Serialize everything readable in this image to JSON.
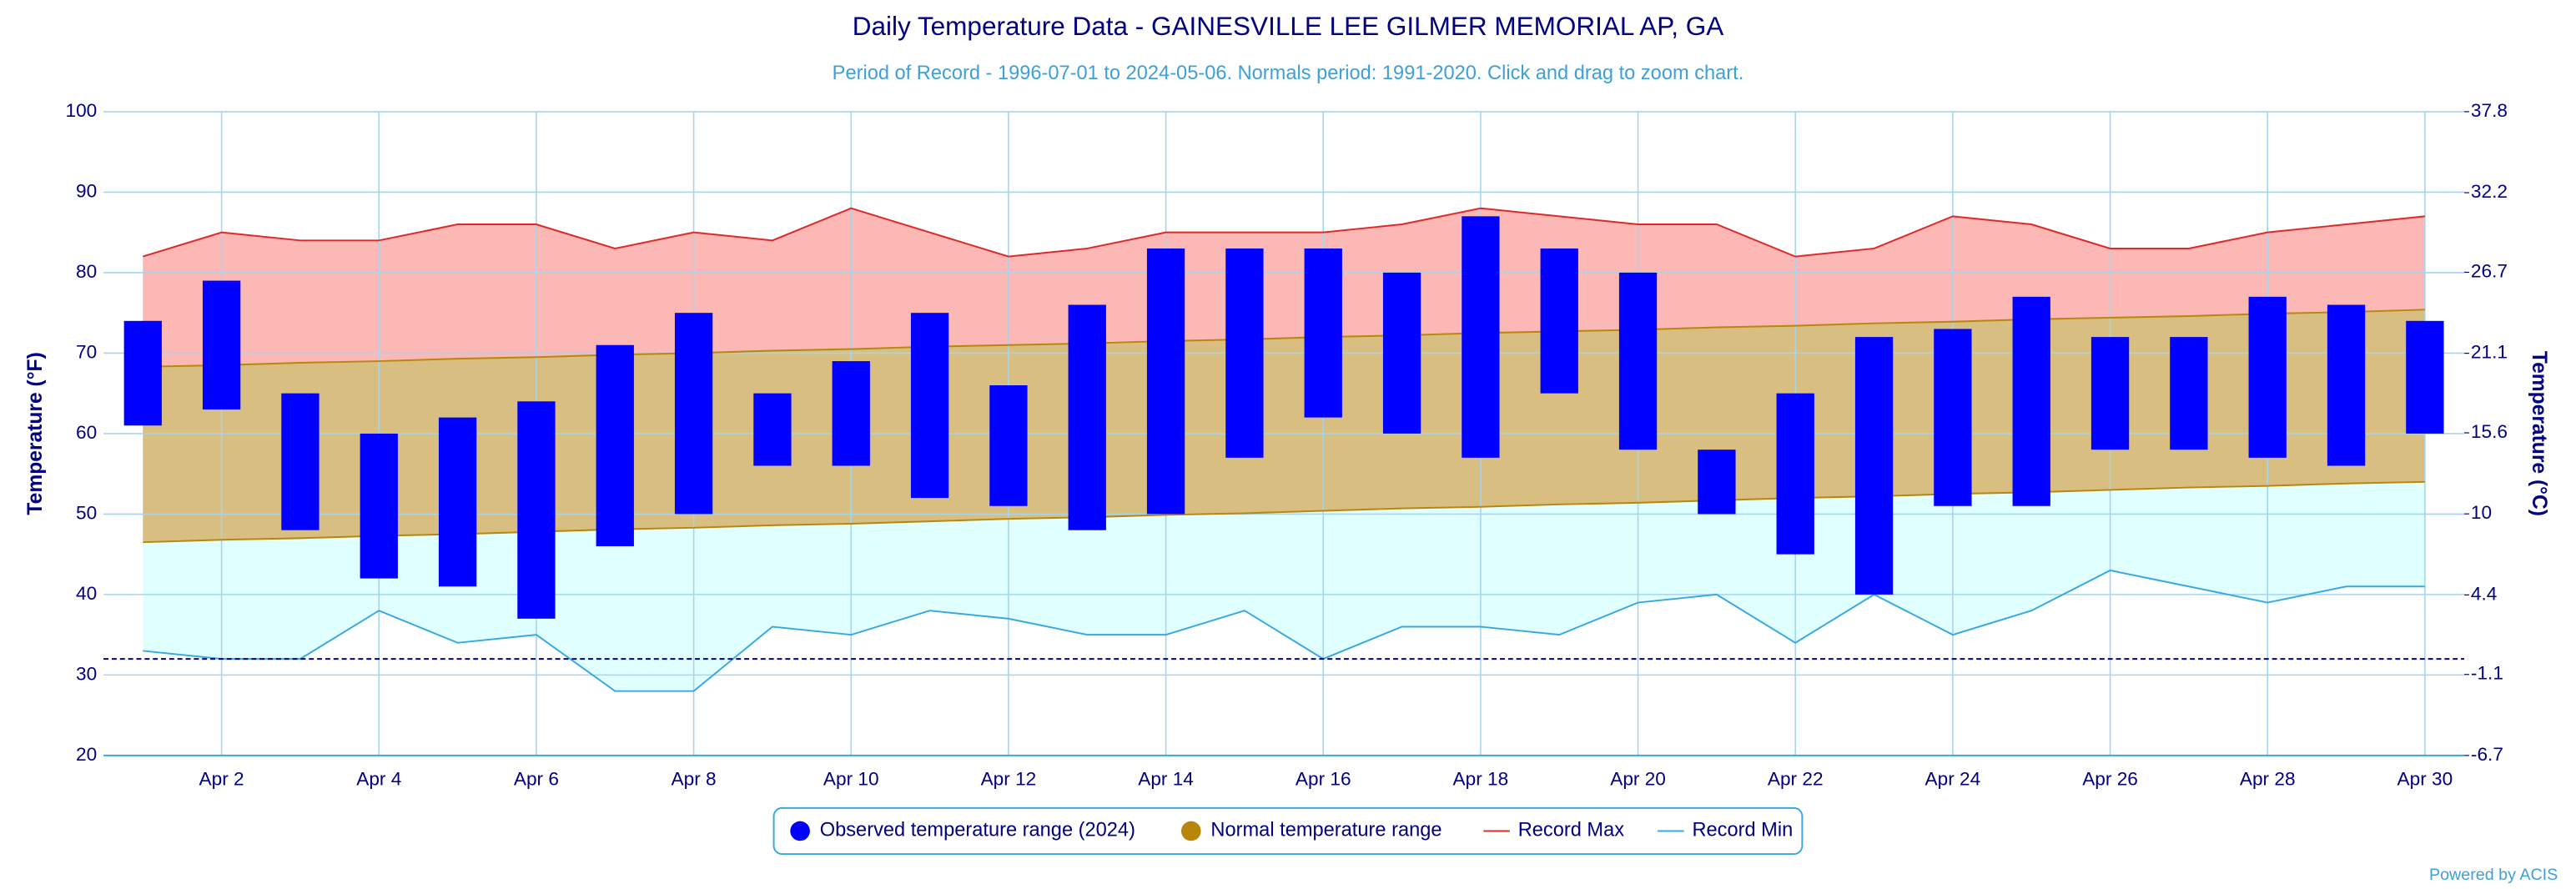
{
  "chart_data": {
    "type": "range-bar",
    "title": "Daily Temperature Data - GAINESVILLE LEE GILMER MEMORIAL AP, GA",
    "subtitle": "Period of Record - 1996-07-01 to 2024-05-06. Normals period: 1991-2020. Click and drag to zoom chart.",
    "y_label": "Temperature (°F)",
    "y2_label": "Temperature (°C)",
    "credit": "Powered by ACIS",
    "categories": [
      null,
      "Apr 2",
      null,
      "Apr 4",
      null,
      "Apr 6",
      null,
      "Apr 8",
      null,
      "Apr 10",
      null,
      "Apr 12",
      null,
      "Apr 14",
      null,
      "Apr 16",
      null,
      "Apr 18",
      null,
      "Apr 20",
      null,
      "Apr 22",
      null,
      "Apr 24",
      null,
      "Apr 26",
      null,
      "Apr 28",
      null,
      "Apr 30"
    ],
    "ylim": [
      20,
      100
    ],
    "yticks": [
      20,
      30,
      40,
      50,
      60,
      70,
      80,
      90,
      100
    ],
    "y2lim": [
      -6.7,
      37.8
    ],
    "y2ticks": [
      -6.7,
      -1.1,
      4.4,
      10,
      15.6,
      21.1,
      26.7,
      32.2,
      37.8
    ],
    "threshold": 32,
    "grid": true,
    "legend": "bottom",
    "series": [
      {
        "name": "Observed temperature range (2024)",
        "color": "#0000ff",
        "low": [
          61,
          63,
          48,
          42,
          41,
          37,
          46,
          50,
          56,
          56,
          52,
          51,
          48,
          50,
          57,
          62,
          60,
          57,
          65,
          58,
          50,
          45,
          40,
          51,
          51,
          58,
          58,
          57,
          56,
          60
        ],
        "high": [
          74,
          79,
          65,
          60,
          62,
          64,
          71,
          75,
          65,
          69,
          75,
          66,
          76,
          83,
          83,
          83,
          80,
          87,
          83,
          80,
          58,
          65,
          72,
          73,
          77,
          72,
          72,
          77,
          76,
          74
        ]
      },
      {
        "name": "Normal temperature range",
        "color": "#b8860b",
        "fill": "#d8be80",
        "low": [
          46.5,
          46.8,
          47.0,
          47.3,
          47.5,
          47.8,
          48.1,
          48.3,
          48.6,
          48.8,
          49.1,
          49.4,
          49.6,
          49.9,
          50.1,
          50.4,
          50.7,
          50.9,
          51.2,
          51.4,
          51.7,
          52.0,
          52.2,
          52.5,
          52.7,
          53.0,
          53.3,
          53.5,
          53.8,
          54.0
        ],
        "high": [
          68.3,
          68.5,
          68.8,
          69.0,
          69.3,
          69.5,
          69.8,
          70.0,
          70.3,
          70.5,
          70.8,
          71.0,
          71.2,
          71.5,
          71.7,
          72.0,
          72.2,
          72.5,
          72.7,
          72.9,
          73.2,
          73.4,
          73.7,
          73.9,
          74.2,
          74.4,
          74.6,
          74.9,
          75.1,
          75.4
        ]
      },
      {
        "name": "Record Max",
        "color": "#e02828",
        "fill": "#fbb8b4",
        "values": [
          82,
          85,
          84,
          84,
          86,
          86,
          83,
          85,
          84,
          88,
          85,
          82,
          83,
          85,
          85,
          85,
          86,
          88,
          87,
          86,
          86,
          82,
          83,
          87,
          86,
          83,
          83,
          85,
          86,
          87
        ]
      },
      {
        "name": "Record Min",
        "color": "#3aa8e0",
        "fill": "#e0ffff",
        "values": [
          33,
          32,
          32,
          38,
          34,
          35,
          28,
          28,
          36,
          35,
          38,
          37,
          35,
          35,
          38,
          32,
          36,
          36,
          35,
          39,
          40,
          34,
          40,
          35,
          38,
          43,
          41,
          39,
          41,
          41
        ]
      }
    ]
  }
}
